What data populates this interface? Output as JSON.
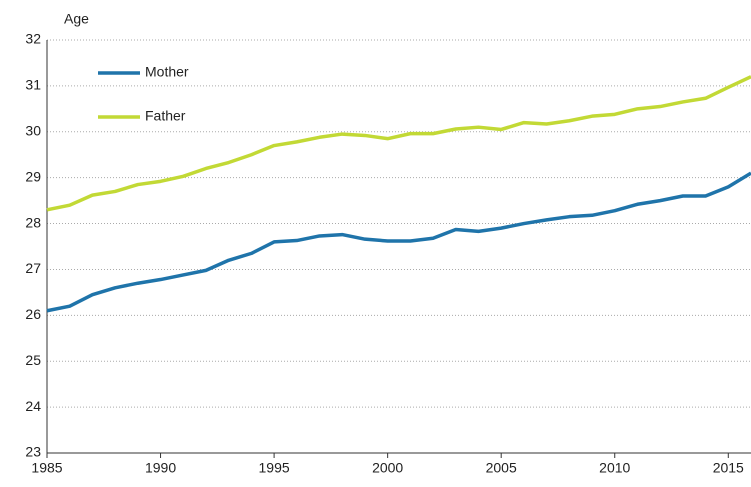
{
  "chart_data": {
    "type": "line",
    "y_label": "Age",
    "x": [
      1985,
      1986,
      1987,
      1988,
      1989,
      1990,
      1991,
      1992,
      1993,
      1994,
      1995,
      1996,
      1997,
      1998,
      1999,
      2000,
      2001,
      2002,
      2003,
      2004,
      2005,
      2006,
      2007,
      2008,
      2009,
      2010,
      2011,
      2012,
      2013,
      2014,
      2015,
      2016
    ],
    "series": [
      {
        "name": "Mother",
        "color": "#1f74aa",
        "values": [
          26.1,
          26.2,
          26.45,
          26.6,
          26.7,
          26.78,
          26.88,
          26.98,
          27.2,
          27.35,
          27.6,
          27.63,
          27.73,
          27.76,
          27.66,
          27.62,
          27.62,
          27.68,
          27.87,
          27.83,
          27.9,
          28.0,
          28.08,
          28.15,
          28.18,
          28.28,
          28.42,
          28.5,
          28.6,
          28.6,
          28.8,
          29.1
        ]
      },
      {
        "name": "Father",
        "color": "#c2d935",
        "values": [
          28.3,
          28.4,
          28.62,
          28.7,
          28.85,
          28.92,
          29.03,
          29.2,
          29.33,
          29.5,
          29.7,
          29.78,
          29.88,
          29.95,
          29.92,
          29.85,
          29.96,
          29.96,
          30.06,
          30.1,
          30.05,
          30.2,
          30.17,
          30.24,
          30.34,
          30.38,
          30.5,
          30.55,
          30.65,
          30.73,
          30.97,
          31.2
        ]
      }
    ],
    "xlim": [
      1985,
      2016
    ],
    "xticks": [
      1985,
      1990,
      1995,
      2000,
      2005,
      2010,
      2015
    ],
    "ylim": [
      23,
      32
    ],
    "yticks": [
      23,
      24,
      25,
      26,
      27,
      28,
      29,
      30,
      31,
      32
    ],
    "grid": true,
    "legend": "top-left"
  }
}
